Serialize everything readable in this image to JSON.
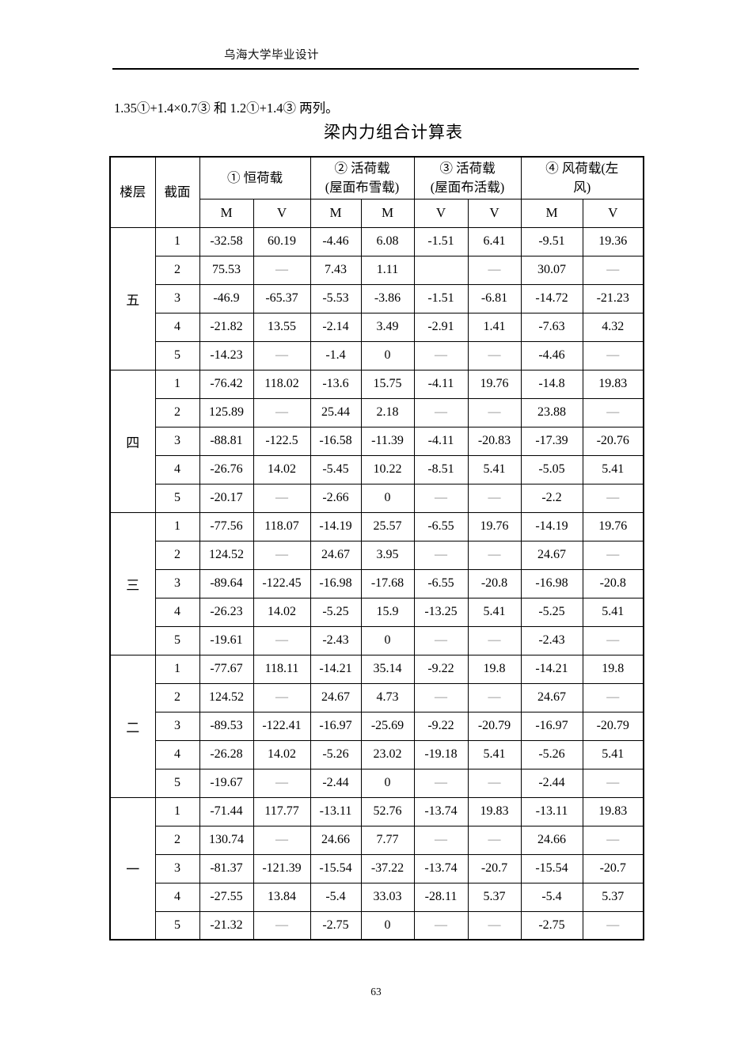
{
  "header": {
    "title": "乌海大学毕业设计"
  },
  "body": {
    "intro_line": "1.35①+1.4×0.7③ 和 1.2①+1.4③ 两列。",
    "table_title": "梁内力组合计算表"
  },
  "footer": {
    "page_number": "63"
  },
  "colors": {
    "text": "#000000",
    "dash": "#828282",
    "border": "#000000",
    "page_bg": "#ffffff"
  },
  "table": {
    "corner_headers": [
      "楼层",
      "截面"
    ],
    "groups": [
      {
        "label": "① 恒荷载",
        "sub": [
          "M",
          "V"
        ]
      },
      {
        "label": "② 活荷载\n(屋面布雪载)",
        "sub": [
          "M",
          "M"
        ]
      },
      {
        "label": "③ 活荷载\n(屋面布活载)",
        "sub": [
          "V",
          "V"
        ]
      },
      {
        "label": "④ 风荷载(左\n风)",
        "sub": [
          "M",
          "V"
        ]
      }
    ],
    "floors": [
      {
        "label": "五",
        "rows": [
          {
            "section": "1",
            "values": [
              "-32.58",
              "60.19",
              "-4.46",
              "6.08",
              "-1.51",
              "6.41",
              "-9.51",
              "19.36"
            ]
          },
          {
            "section": "2",
            "values": [
              "75.53",
              "—",
              "7.43",
              "1.11",
              "",
              "—",
              "30.07",
              "—"
            ]
          },
          {
            "section": "3",
            "values": [
              "-46.9",
              "-65.37",
              "-5.53",
              "-3.86",
              "-1.51",
              "-6.81",
              "-14.72",
              "-21.23"
            ]
          },
          {
            "section": "4",
            "values": [
              "-21.82",
              "13.55",
              "-2.14",
              "3.49",
              "-2.91",
              "1.41",
              "-7.63",
              "4.32"
            ]
          },
          {
            "section": "5",
            "values": [
              "-14.23",
              "—",
              "-1.4",
              "0",
              "—",
              "—",
              "-4.46",
              "—"
            ]
          }
        ]
      },
      {
        "label": "四",
        "rows": [
          {
            "section": "1",
            "values": [
              "-76.42",
              "118.02",
              "-13.6",
              "15.75",
              "-4.11",
              "19.76",
              "-14.8",
              "19.83"
            ]
          },
          {
            "section": "2",
            "values": [
              "125.89",
              "—",
              "25.44",
              "2.18",
              "—",
              "—",
              "23.88",
              "—"
            ]
          },
          {
            "section": "3",
            "values": [
              "-88.81",
              "-122.5",
              "-16.58",
              "-11.39",
              "-4.11",
              "-20.83",
              "-17.39",
              "-20.76"
            ]
          },
          {
            "section": "4",
            "values": [
              "-26.76",
              "14.02",
              "-5.45",
              "10.22",
              "-8.51",
              "5.41",
              "-5.05",
              "5.41"
            ]
          },
          {
            "section": "5",
            "values": [
              "-20.17",
              "—",
              "-2.66",
              "0",
              "—",
              "—",
              "-2.2",
              "—"
            ]
          }
        ]
      },
      {
        "label": "三",
        "rows": [
          {
            "section": "1",
            "values": [
              "-77.56",
              "118.07",
              "-14.19",
              "25.57",
              "-6.55",
              "19.76",
              "-14.19",
              "19.76"
            ]
          },
          {
            "section": "2",
            "values": [
              "124.52",
              "—",
              "24.67",
              "3.95",
              "—",
              "—",
              "24.67",
              "—"
            ]
          },
          {
            "section": "3",
            "values": [
              "-89.64",
              "-122.45",
              "-16.98",
              "-17.68",
              "-6.55",
              "-20.8",
              "-16.98",
              "-20.8"
            ]
          },
          {
            "section": "4",
            "values": [
              "-26.23",
              "14.02",
              "-5.25",
              "15.9",
              "-13.25",
              "5.41",
              "-5.25",
              "5.41"
            ]
          },
          {
            "section": "5",
            "values": [
              "-19.61",
              "—",
              "-2.43",
              "0",
              "—",
              "—",
              "-2.43",
              "—"
            ]
          }
        ]
      },
      {
        "label": "二",
        "rows": [
          {
            "section": "1",
            "values": [
              "-77.67",
              "118.11",
              "-14.21",
              "35.14",
              "-9.22",
              "19.8",
              "-14.21",
              "19.8"
            ]
          },
          {
            "section": "2",
            "values": [
              "124.52",
              "—",
              "24.67",
              "4.73",
              "—",
              "—",
              "24.67",
              "—"
            ]
          },
          {
            "section": "3",
            "values": [
              "-89.53",
              "-122.41",
              "-16.97",
              "-25.69",
              "-9.22",
              "-20.79",
              "-16.97",
              "-20.79"
            ]
          },
          {
            "section": "4",
            "values": [
              "-26.28",
              "14.02",
              "-5.26",
              "23.02",
              "-19.18",
              "5.41",
              "-5.26",
              "5.41"
            ]
          },
          {
            "section": "5",
            "values": [
              "-19.67",
              "—",
              "-2.44",
              "0",
              "—",
              "—",
              "-2.44",
              "—"
            ]
          }
        ]
      },
      {
        "label": "一",
        "rows": [
          {
            "section": "1",
            "values": [
              "-71.44",
              "117.77",
              "-13.11",
              "52.76",
              "-13.74",
              "19.83",
              "-13.11",
              "19.83"
            ]
          },
          {
            "section": "2",
            "values": [
              "130.74",
              "—",
              "24.66",
              "7.77",
              "—",
              "—",
              "24.66",
              "—"
            ]
          },
          {
            "section": "3",
            "values": [
              "-81.37",
              "-121.39",
              "-15.54",
              "-37.22",
              "-13.74",
              "-20.7",
              "-15.54",
              "-20.7"
            ]
          },
          {
            "section": "4",
            "values": [
              "-27.55",
              "13.84",
              "-5.4",
              "33.03",
              "-28.11",
              "5.37",
              "-5.4",
              "5.37"
            ]
          },
          {
            "section": "5",
            "values": [
              "-21.32",
              "—",
              "-2.75",
              "0",
              "—",
              "—",
              "-2.75",
              "—"
            ]
          }
        ]
      }
    ]
  }
}
